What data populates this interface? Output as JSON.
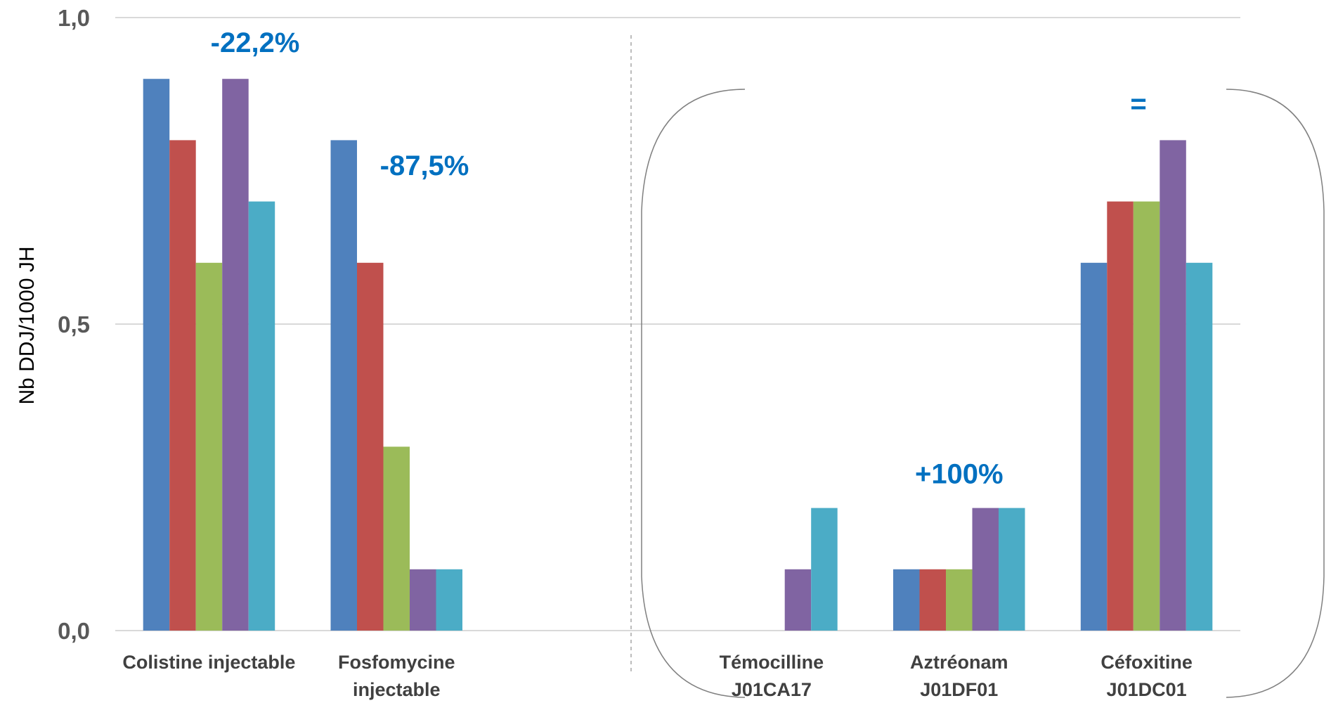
{
  "chart_data": {
    "type": "bar",
    "ylabel": "Nb DDJ/1000 JH",
    "xlabel": "",
    "ylim": [
      0,
      1.0
    ],
    "yticks": [
      "0,0",
      "0,5",
      "1,0"
    ],
    "grid": true,
    "categories": [
      [
        "Colistine injectable"
      ],
      [
        "Fosfomycine",
        "injectable"
      ],
      [
        ""
      ],
      [
        "Témocilline",
        "J01CA17"
      ],
      [
        "Aztréonam",
        "J01DF01"
      ],
      [
        "Céfoxitine",
        "J01DC01"
      ]
    ],
    "series": [
      {
        "color": "#4F81BD",
        "values": [
          0.9,
          0.8,
          0,
          0,
          0.1,
          0.6
        ]
      },
      {
        "color": "#C0504D",
        "values": [
          0.8,
          0.6,
          0,
          0,
          0.1,
          0.7
        ]
      },
      {
        "color": "#9BBB59",
        "values": [
          0.6,
          0.3,
          0,
          0,
          0.1,
          0.7
        ]
      },
      {
        "color": "#8064A2",
        "values": [
          0.9,
          0.1,
          0,
          0.1,
          0.2,
          0.8
        ]
      },
      {
        "color": "#4BACC6",
        "values": [
          0.7,
          0.1,
          0,
          0.2,
          0.2,
          0.6
        ]
      }
    ],
    "annotations": [
      {
        "text": "-22,2%",
        "category": 0
      },
      {
        "text": "-87,5%",
        "category": 1
      },
      {
        "text": "+100%",
        "category": 4
      },
      {
        "text": "=",
        "category": 5
      }
    ]
  }
}
